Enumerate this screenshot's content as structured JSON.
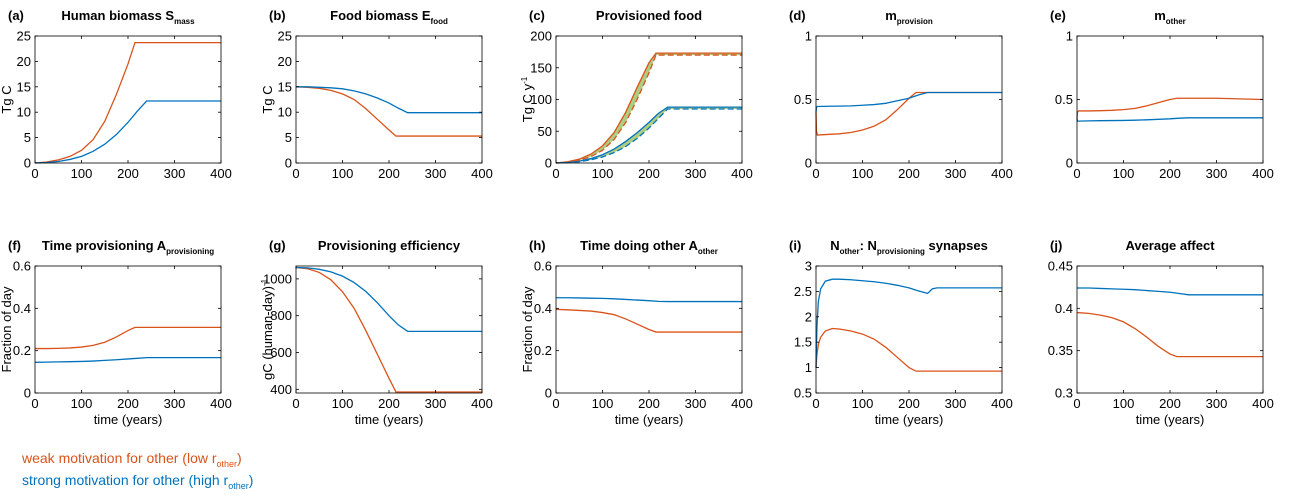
{
  "colors": {
    "weak": "#d95319",
    "strong": "#0072bd",
    "shade": "#77ac30"
  },
  "legend": {
    "weak": {
      "text": "weak motivation for other (low r",
      "sub": "other",
      "end": ")"
    },
    "strong": {
      "text": "strong motivation for other (high r",
      "sub": "other",
      "end": ")"
    }
  },
  "chart_data": [
    {
      "type": "line",
      "panel": "(a)",
      "title": "Human biomass S",
      "title_sub": "mass",
      "title_end": "",
      "ylabel": "Tg C",
      "ylabel_sup": "",
      "xlabel": "",
      "xlim": [
        0,
        400
      ],
      "ylim": [
        0,
        25
      ],
      "xticks": [
        0,
        100,
        200,
        300,
        400
      ],
      "yticks": [
        0,
        5,
        10,
        15,
        20,
        25
      ],
      "series": [
        {
          "key": "weak",
          "x": [
            0,
            25,
            50,
            75,
            100,
            125,
            150,
            175,
            200,
            215,
            260,
            300,
            350,
            400
          ],
          "y": [
            0,
            0.2,
            0.6,
            1.3,
            2.5,
            4.6,
            8.2,
            13.5,
            19.5,
            23.7,
            23.7,
            23.7,
            23.7,
            23.7
          ]
        },
        {
          "key": "strong",
          "x": [
            0,
            25,
            50,
            75,
            100,
            125,
            150,
            175,
            200,
            220,
            240,
            300,
            350,
            400
          ],
          "y": [
            0,
            0.1,
            0.3,
            0.7,
            1.3,
            2.3,
            3.7,
            5.6,
            8.0,
            10.2,
            12.2,
            12.2,
            12.2,
            12.2
          ]
        }
      ]
    },
    {
      "type": "line",
      "panel": "(b)",
      "title": "Food biomass E",
      "title_sub": "food",
      "title_end": "",
      "ylabel": "Tg C",
      "ylabel_sup": "",
      "xlabel": "",
      "xlim": [
        0,
        400
      ],
      "ylim": [
        0,
        25
      ],
      "xticks": [
        0,
        100,
        200,
        300,
        400
      ],
      "yticks": [
        0,
        5,
        10,
        15,
        20,
        25
      ],
      "series": [
        {
          "key": "weak",
          "x": [
            0,
            25,
            50,
            75,
            100,
            125,
            150,
            175,
            200,
            215,
            260,
            300,
            350,
            400
          ],
          "y": [
            15,
            14.9,
            14.7,
            14.3,
            13.6,
            12.5,
            10.7,
            8.6,
            6.5,
            5.3,
            5.3,
            5.3,
            5.3,
            5.3
          ]
        },
        {
          "key": "strong",
          "x": [
            0,
            25,
            50,
            75,
            100,
            125,
            150,
            175,
            200,
            220,
            240,
            300,
            350,
            400
          ],
          "y": [
            15,
            15,
            14.9,
            14.8,
            14.6,
            14.2,
            13.6,
            12.8,
            11.8,
            10.8,
            9.9,
            9.9,
            9.9,
            9.9
          ]
        }
      ]
    },
    {
      "type": "line",
      "panel": "(c)",
      "title": "Provisioned food",
      "title_sub": "",
      "title_end": "",
      "ylabel": "Tg C y",
      "ylabel_sup": "-1",
      "xlabel": "",
      "xlim": [
        0,
        400
      ],
      "ylim": [
        0,
        200
      ],
      "xticks": [
        0,
        100,
        200,
        300,
        400
      ],
      "yticks": [
        0,
        50,
        100,
        150,
        200
      ],
      "series": [
        {
          "key": "weak",
          "x": [
            0,
            25,
            50,
            75,
            100,
            125,
            150,
            175,
            200,
            215,
            260,
            300,
            350,
            400
          ],
          "y": [
            0,
            2,
            6,
            14,
            27,
            48,
            80,
            120,
            158,
            173,
            173,
            173,
            173,
            173
          ]
        },
        {
          "key": "strong",
          "x": [
            0,
            25,
            50,
            75,
            100,
            125,
            150,
            175,
            200,
            220,
            240,
            300,
            350,
            400
          ],
          "y": [
            0,
            1,
            3,
            7,
            13,
            22,
            34,
            48,
            64,
            78,
            88,
            88,
            88,
            88
          ]
        }
      ],
      "dashed": [
        {
          "key": "weak",
          "x": [
            0,
            25,
            50,
            75,
            100,
            125,
            150,
            175,
            200,
            215,
            260,
            300,
            350,
            400
          ],
          "y": [
            0,
            1.5,
            4.5,
            10,
            20,
            37,
            64,
            101,
            142,
            170,
            170,
            170,
            170,
            170
          ]
        },
        {
          "key": "strong",
          "x": [
            0,
            25,
            50,
            75,
            100,
            125,
            150,
            175,
            200,
            220,
            240,
            300,
            350,
            400
          ],
          "y": [
            0,
            0.6,
            2,
            5,
            9.5,
            16.5,
            26,
            39,
            55,
            70,
            85,
            85,
            85,
            85
          ]
        }
      ]
    },
    {
      "type": "line",
      "panel": "(d)",
      "title": "m",
      "title_sub": "provision",
      "title_end": "",
      "ylabel": "",
      "ylabel_sup": "",
      "xlabel": "",
      "xlim": [
        0,
        400
      ],
      "ylim": [
        0,
        1
      ],
      "xticks": [
        0,
        100,
        200,
        300,
        400
      ],
      "yticks": [
        0,
        0.5,
        1
      ],
      "series": [
        {
          "key": "weak",
          "x": [
            0,
            1,
            3,
            25,
            50,
            75,
            100,
            125,
            150,
            175,
            200,
            215,
            260,
            300,
            350,
            400
          ],
          "y": [
            0.4,
            0.25,
            0.22,
            0.225,
            0.23,
            0.24,
            0.26,
            0.29,
            0.34,
            0.42,
            0.51,
            0.555,
            0.555,
            0.555,
            0.555,
            0.555
          ]
        },
        {
          "key": "strong",
          "x": [
            0,
            1,
            3,
            25,
            50,
            75,
            100,
            125,
            150,
            175,
            200,
            220,
            240,
            300,
            350,
            400
          ],
          "y": [
            0.4,
            0.44,
            0.445,
            0.447,
            0.448,
            0.45,
            0.455,
            0.46,
            0.47,
            0.49,
            0.51,
            0.535,
            0.555,
            0.555,
            0.555,
            0.555
          ]
        }
      ]
    },
    {
      "type": "line",
      "panel": "(e)",
      "title": "m",
      "title_sub": "other",
      "title_end": "",
      "ylabel": "",
      "ylabel_sup": "",
      "xlabel": "",
      "xlim": [
        0,
        400
      ],
      "ylim": [
        0,
        1
      ],
      "xticks": [
        0,
        100,
        200,
        300,
        400
      ],
      "yticks": [
        0,
        0.5,
        1
      ],
      "series": [
        {
          "key": "weak",
          "x": [
            0,
            1,
            3,
            25,
            50,
            75,
            100,
            125,
            150,
            175,
            200,
            215,
            260,
            300,
            350,
            400
          ],
          "y": [
            0.35,
            0.4,
            0.41,
            0.41,
            0.412,
            0.415,
            0.42,
            0.43,
            0.45,
            0.475,
            0.5,
            0.51,
            0.51,
            0.51,
            0.505,
            0.5
          ]
        },
        {
          "key": "strong",
          "x": [
            0,
            1,
            3,
            25,
            50,
            75,
            100,
            125,
            150,
            175,
            200,
            220,
            240,
            300,
            350,
            400
          ],
          "y": [
            0.35,
            0.33,
            0.33,
            0.332,
            0.333,
            0.334,
            0.335,
            0.337,
            0.34,
            0.344,
            0.348,
            0.353,
            0.356,
            0.356,
            0.356,
            0.356
          ]
        }
      ]
    },
    {
      "type": "line",
      "panel": "(f)",
      "title": "Time provisioning A",
      "title_sub": "provisioning",
      "title_end": "",
      "ylabel": "Fraction of day",
      "ylabel_sup": "",
      "xlabel": "time (years)",
      "xlim": [
        0,
        400
      ],
      "ylim": [
        0,
        0.6
      ],
      "xticks": [
        0,
        100,
        200,
        300,
        400
      ],
      "yticks": [
        0,
        0.2,
        0.4,
        0.6
      ],
      "series": [
        {
          "key": "weak",
          "x": [
            0,
            25,
            50,
            75,
            100,
            125,
            150,
            175,
            200,
            215,
            260,
            300,
            350,
            400
          ],
          "y": [
            0.21,
            0.21,
            0.211,
            0.213,
            0.217,
            0.225,
            0.24,
            0.265,
            0.295,
            0.31,
            0.31,
            0.31,
            0.31,
            0.31
          ]
        },
        {
          "key": "strong",
          "x": [
            0,
            25,
            50,
            75,
            100,
            125,
            150,
            175,
            200,
            220,
            240,
            300,
            350,
            400
          ],
          "y": [
            0.145,
            0.146,
            0.147,
            0.148,
            0.149,
            0.151,
            0.154,
            0.157,
            0.161,
            0.164,
            0.167,
            0.167,
            0.167,
            0.167
          ]
        }
      ]
    },
    {
      "type": "line",
      "panel": "(g)",
      "title": "Provisioning efficiency",
      "title_sub": "",
      "title_end": "",
      "ylabel": "gC (human-day)",
      "ylabel_sup": "-1",
      "xlabel": "time (years)",
      "xlim": [
        0,
        400
      ],
      "ylim": [
        380,
        1070
      ],
      "xticks": [
        0,
        100,
        200,
        300,
        400
      ],
      "yticks": [
        400,
        600,
        800,
        1000
      ],
      "series": [
        {
          "key": "weak",
          "x": [
            0,
            25,
            50,
            75,
            100,
            125,
            150,
            175,
            200,
            215,
            260,
            300,
            350,
            400
          ],
          "y": [
            1062,
            1055,
            1035,
            995,
            930,
            840,
            720,
            590,
            460,
            385,
            385,
            385,
            385,
            385
          ]
        },
        {
          "key": "strong",
          "x": [
            0,
            25,
            50,
            75,
            100,
            125,
            150,
            175,
            200,
            220,
            240,
            300,
            350,
            400
          ],
          "y": [
            1062,
            1060,
            1052,
            1038,
            1015,
            980,
            932,
            870,
            800,
            750,
            715,
            715,
            715,
            715
          ]
        }
      ]
    },
    {
      "type": "line",
      "panel": "(h)",
      "title": "Time doing other A",
      "title_sub": "other",
      "title_end": "",
      "ylabel": "Fraction of day",
      "ylabel_sup": "",
      "xlabel": "time (years)",
      "xlim": [
        0,
        400
      ],
      "ylim": [
        0,
        0.6
      ],
      "xticks": [
        0,
        100,
        200,
        300,
        400
      ],
      "yticks": [
        0,
        0.2,
        0.4,
        0.6
      ],
      "series": [
        {
          "key": "weak",
          "x": [
            0,
            25,
            50,
            75,
            100,
            125,
            150,
            175,
            200,
            215,
            260,
            300,
            350,
            400
          ],
          "y": [
            0.395,
            0.393,
            0.39,
            0.387,
            0.38,
            0.37,
            0.35,
            0.325,
            0.3,
            0.288,
            0.288,
            0.288,
            0.288,
            0.288
          ]
        },
        {
          "key": "strong",
          "x": [
            0,
            25,
            50,
            75,
            100,
            125,
            150,
            175,
            200,
            220,
            240,
            300,
            350,
            400
          ],
          "y": [
            0.45,
            0.45,
            0.449,
            0.448,
            0.447,
            0.445,
            0.442,
            0.439,
            0.436,
            0.433,
            0.432,
            0.432,
            0.432,
            0.432
          ]
        }
      ]
    },
    {
      "type": "line",
      "panel": "(i)",
      "title": "N",
      "title_sub": "other",
      "title_end": ": N",
      "title_sub2": "provisioning",
      "title_end2": " synapses",
      "ylabel": "",
      "ylabel_sup": "",
      "xlabel": "time (years)",
      "xlim": [
        0,
        400
      ],
      "ylim": [
        0.5,
        3
      ],
      "xticks": [
        0,
        100,
        200,
        300,
        400
      ],
      "yticks": [
        0.5,
        1,
        1.5,
        2,
        2.5,
        3
      ],
      "series": [
        {
          "key": "weak",
          "x": [
            0,
            2,
            5,
            10,
            20,
            35,
            50,
            75,
            100,
            125,
            150,
            175,
            200,
            215,
            260,
            300,
            350,
            400
          ],
          "y": [
            1.0,
            1.25,
            1.45,
            1.6,
            1.72,
            1.77,
            1.76,
            1.72,
            1.66,
            1.56,
            1.4,
            1.2,
            1.0,
            0.93,
            0.93,
            0.93,
            0.93,
            0.93
          ]
        },
        {
          "key": "strong",
          "x": [
            0,
            2,
            5,
            10,
            20,
            35,
            50,
            75,
            100,
            125,
            150,
            175,
            200,
            220,
            240,
            250,
            260,
            300,
            350,
            400
          ],
          "y": [
            1.0,
            1.8,
            2.3,
            2.55,
            2.7,
            2.74,
            2.74,
            2.73,
            2.71,
            2.69,
            2.66,
            2.62,
            2.57,
            2.51,
            2.46,
            2.55,
            2.57,
            2.57,
            2.57,
            2.57
          ]
        }
      ]
    },
    {
      "type": "line",
      "panel": "(j)",
      "title": "Average affect",
      "title_sub": "",
      "title_end": "",
      "ylabel": "",
      "ylabel_sup": "",
      "xlabel": "time (years)",
      "xlim": [
        0,
        400
      ],
      "ylim": [
        0.3,
        0.45
      ],
      "xticks": [
        0,
        100,
        200,
        300,
        400
      ],
      "yticks": [
        0.3,
        0.35,
        0.4,
        0.45
      ],
      "series": [
        {
          "key": "weak",
          "x": [
            0,
            25,
            50,
            75,
            100,
            125,
            150,
            175,
            200,
            215,
            260,
            300,
            350,
            400
          ],
          "y": [
            0.395,
            0.394,
            0.392,
            0.389,
            0.384,
            0.376,
            0.366,
            0.355,
            0.346,
            0.343,
            0.343,
            0.343,
            0.343,
            0.343
          ]
        },
        {
          "key": "strong",
          "x": [
            0,
            25,
            50,
            75,
            100,
            125,
            150,
            175,
            200,
            220,
            240,
            300,
            350,
            400
          ],
          "y": [
            0.424,
            0.424,
            0.4235,
            0.423,
            0.4225,
            0.422,
            0.421,
            0.42,
            0.419,
            0.4175,
            0.416,
            0.416,
            0.416,
            0.416
          ]
        }
      ]
    }
  ]
}
